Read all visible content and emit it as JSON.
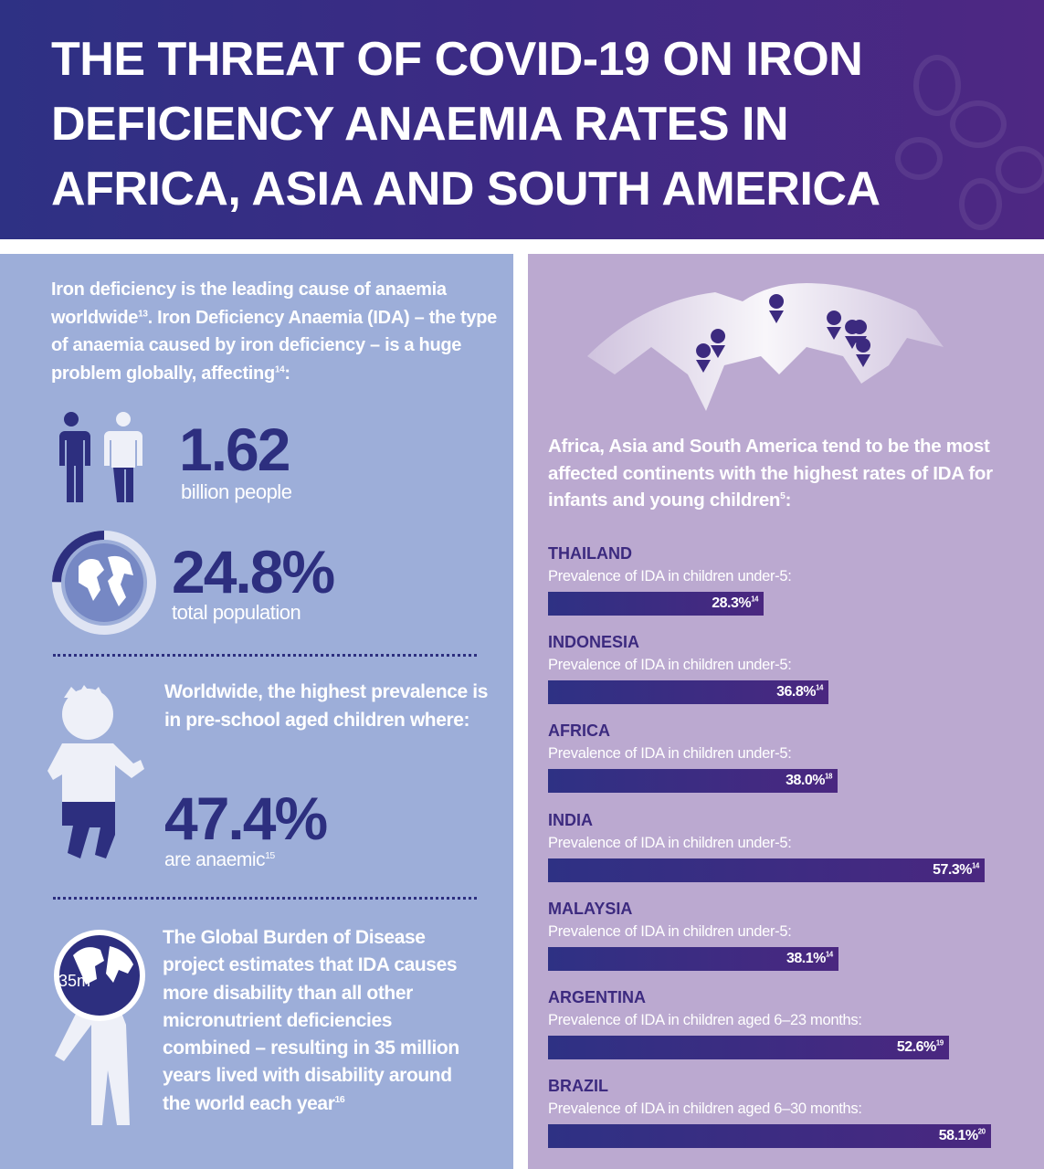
{
  "header": {
    "title_lines": [
      "THE THREAT OF COVID-19 ON IRON",
      "DEFICIENCY ANAEMIA RATES IN",
      "AFRICA, ASIA AND SOUTH AMERICA"
    ]
  },
  "left": {
    "intro_1": "Iron deficiency is the leading cause of anaemia worldwide",
    "intro_sup1": "13",
    "intro_2": ". Iron Deficiency Anaemia (IDA) – the type of anaemia caused by iron deficiency – is a huge problem globally, affecting",
    "intro_sup2": "14",
    "intro_3": ":",
    "stat1_value": "1.62",
    "stat1_label": "billion people",
    "stat2_value": "24.8%",
    "stat2_label": "total population",
    "stat2_fraction": 0.248,
    "children_text": "Worldwide, the highest prevalence is in pre-school aged children where:",
    "stat3_value": "47.4%",
    "stat3_label": "are anaemic",
    "stat3_sup": "15",
    "globe_label": "35m",
    "burden_text": "The Global Burden of Disease project estimates that IDA causes more disability than all other micronutrient deficiencies combined – resulting in 35 million years lived with disability around the world each year",
    "burden_sup": "16"
  },
  "right": {
    "intro": "Africa, Asia and South America tend to be the most affected continents with the highest rates of IDA for infants and young children",
    "intro_sup": "5",
    "intro_end": ":"
  },
  "colors": {
    "bar": "#3a2c82",
    "title_purple": "#3c2a7f",
    "left_bg": "#9daed9",
    "right_bg": "#bba9d0"
  },
  "chart_data": {
    "type": "bar",
    "orientation": "horizontal",
    "categories": [
      "THAILAND",
      "INDONESIA",
      "AFRICA",
      "INDIA",
      "MALAYSIA",
      "ARGENTINA",
      "BRAZIL"
    ],
    "subtitles": [
      "Prevalence of IDA in children under-5:",
      "Prevalence of IDA in children under-5:",
      "Prevalence of IDA in children under-5:",
      "Prevalence of IDA in children under-5:",
      "Prevalence of IDA in children under-5:",
      "Prevalence of IDA in children aged 6–23 months:",
      "Prevalence of IDA in children aged 6–30 months:"
    ],
    "values": [
      28.3,
      36.8,
      38.0,
      57.3,
      38.1,
      52.6,
      58.1
    ],
    "labels": [
      "28.3%",
      "36.8%",
      "38.0%",
      "57.3%",
      "38.1%",
      "52.6%",
      "58.1%"
    ],
    "references": [
      "14",
      "14",
      "18",
      "14",
      "14",
      "19",
      "20"
    ]
  }
}
